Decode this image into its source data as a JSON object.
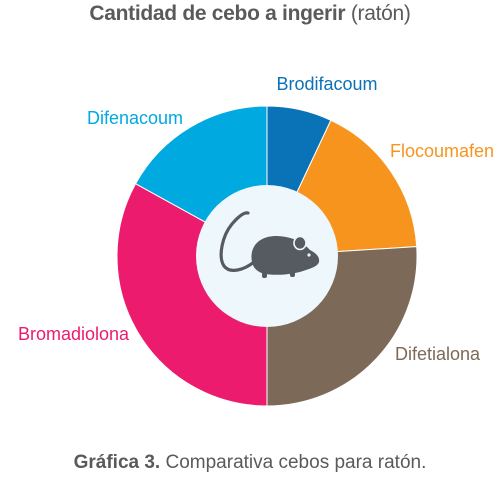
{
  "chart_data": {
    "type": "pie",
    "variant": "donut",
    "title_bold": "Cantidad de cebo a ingerir",
    "title_light": "(ratón)",
    "categories": [
      "Brodifacoum",
      "Flocoumafen",
      "Difetialona",
      "Bromadiolona",
      "Difenacoum"
    ],
    "values": [
      7,
      17,
      26,
      33,
      17
    ],
    "colors": [
      "#0a72b7",
      "#f7941d",
      "#7d6957",
      "#ec1b6d",
      "#00a9e0"
    ],
    "center_icon": "mouse-icon"
  },
  "caption": {
    "bold": "Gráfica 3.",
    "text": "Comparativa cebos para ratón."
  }
}
